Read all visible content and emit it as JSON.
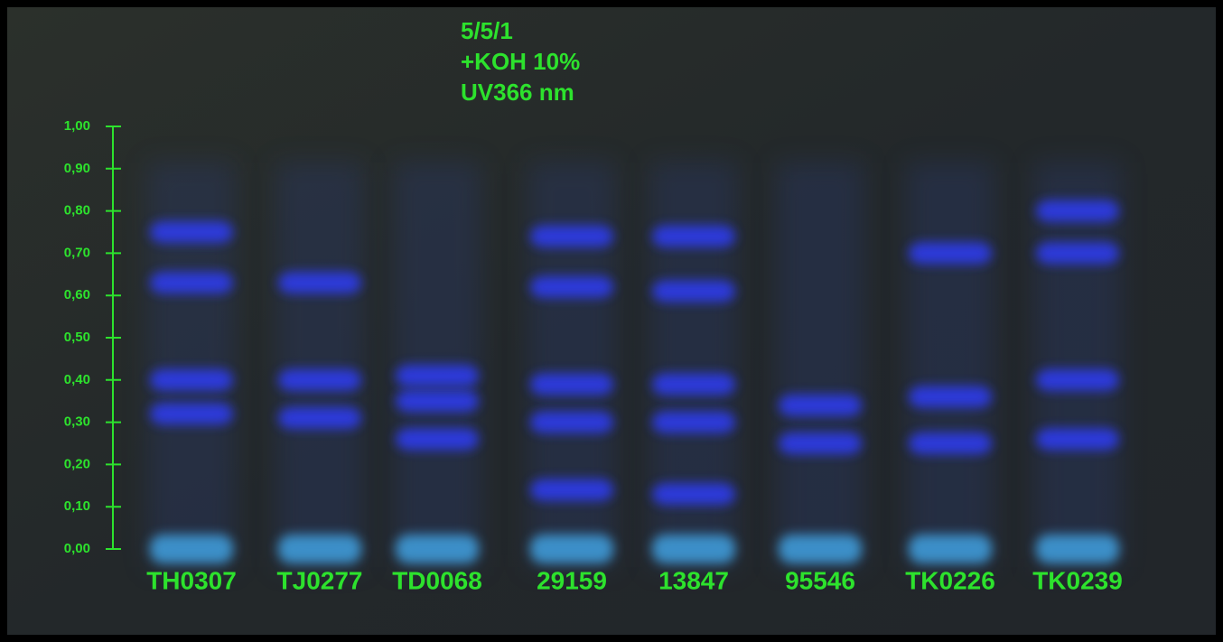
{
  "header": {
    "lines": [
      "5/5/1",
      "+KOH 10%",
      "UV366 nm"
    ]
  },
  "axis": {
    "ticks": [
      {
        "value": 0,
        "label": "0,00"
      },
      {
        "value": 0.1,
        "label": "0,10"
      },
      {
        "value": 0.2,
        "label": "0,20"
      },
      {
        "value": 0.3,
        "label": "0,30"
      },
      {
        "value": 0.4,
        "label": "0,40"
      },
      {
        "value": 0.5,
        "label": "0,50"
      },
      {
        "value": 0.6,
        "label": "0,60"
      },
      {
        "value": 0.7,
        "label": "0,70"
      },
      {
        "value": 0.8,
        "label": "0,80"
      },
      {
        "value": 0.9,
        "label": "0,90"
      },
      {
        "value": 1,
        "label": "1,00"
      }
    ]
  },
  "lanes": [
    {
      "label": "TH0307",
      "bands": [
        0,
        0.32,
        0.4,
        0.63,
        0.75
      ]
    },
    {
      "label": "TJ0277",
      "bands": [
        0,
        0.31,
        0.4,
        0.63
      ]
    },
    {
      "label": "TD0068",
      "bands": [
        0,
        0.26,
        0.35,
        0.41
      ]
    },
    {
      "label": "29159",
      "bands": [
        0,
        0.14,
        0.3,
        0.39,
        0.62,
        0.74
      ]
    },
    {
      "label": "13847",
      "bands": [
        0,
        0.13,
        0.3,
        0.39,
        0.61,
        0.74
      ]
    },
    {
      "label": "95546",
      "bands": [
        0,
        0.25,
        0.34
      ]
    },
    {
      "label": "TK0226",
      "bands": [
        0,
        0.25,
        0.36,
        0.7
      ]
    },
    {
      "label": "TK0239",
      "bands": [
        0,
        0.26,
        0.4,
        0.7,
        0.8
      ]
    }
  ]
}
